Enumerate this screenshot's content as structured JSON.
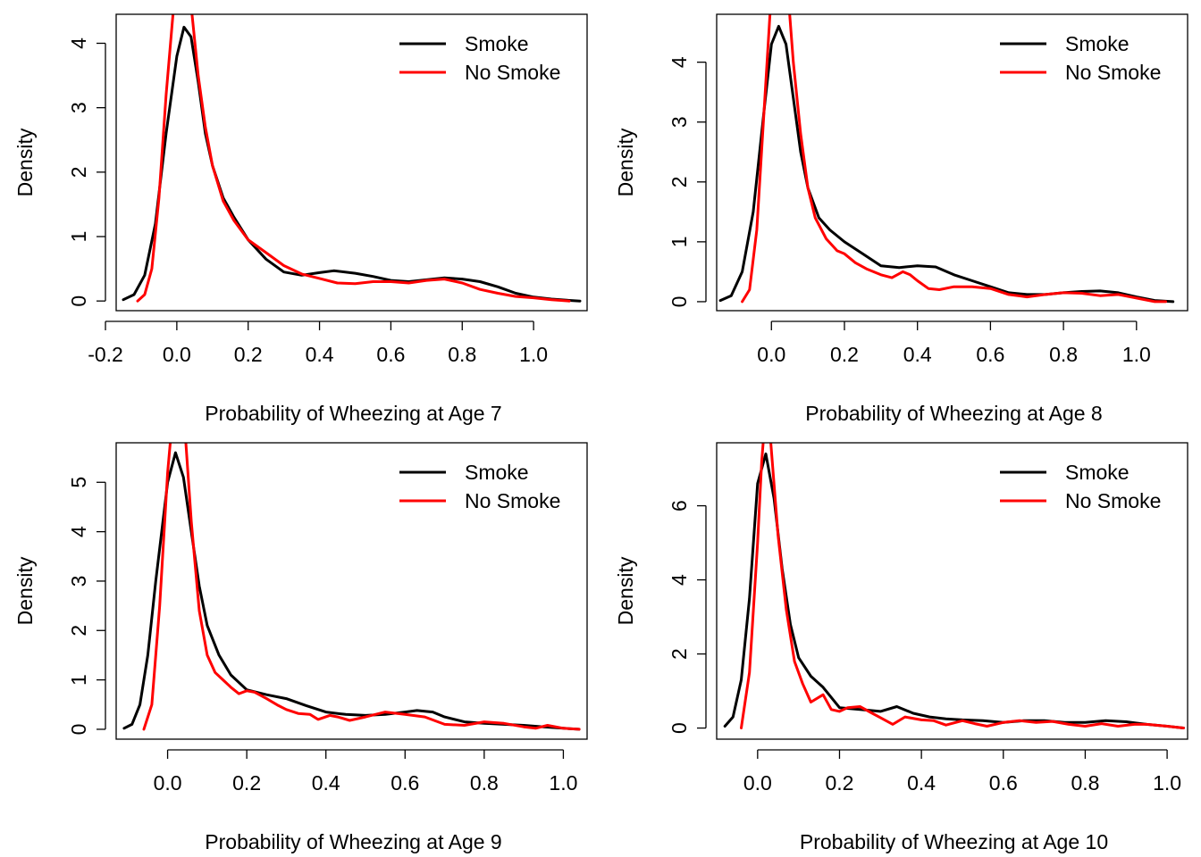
{
  "chart_data": [
    {
      "type": "line",
      "title": "",
      "xlabel": "Probability of Wheezing at Age 7",
      "ylabel": "Density",
      "xlim": [
        -0.17,
        1.15
      ],
      "ylim": [
        -0.15,
        4.45
      ],
      "xticks": [
        -0.2,
        0.0,
        0.2,
        0.4,
        0.6,
        0.8,
        1.0
      ],
      "xtick_labels": [
        "-0.2",
        "0.0",
        "0.2",
        "0.4",
        "0.6",
        "0.8",
        "1.0"
      ],
      "yticks": [
        0,
        1,
        2,
        3,
        4
      ],
      "ytick_labels": [
        "0",
        "1",
        "2",
        "3",
        "4"
      ],
      "legend": {
        "position": "top-right",
        "entries": [
          "Smoke",
          "No Smoke"
        ]
      },
      "series": [
        {
          "name": "Smoke",
          "color": "#000000",
          "x": [
            -0.15,
            -0.12,
            -0.09,
            -0.06,
            -0.03,
            0.0,
            0.02,
            0.04,
            0.06,
            0.08,
            0.1,
            0.13,
            0.16,
            0.2,
            0.25,
            0.3,
            0.35,
            0.4,
            0.44,
            0.5,
            0.55,
            0.6,
            0.65,
            0.7,
            0.75,
            0.8,
            0.85,
            0.9,
            0.95,
            1.0,
            1.05,
            1.1,
            1.13
          ],
          "y": [
            0.02,
            0.1,
            0.4,
            1.2,
            2.6,
            3.8,
            4.25,
            4.1,
            3.4,
            2.6,
            2.1,
            1.6,
            1.3,
            0.95,
            0.65,
            0.45,
            0.4,
            0.44,
            0.47,
            0.43,
            0.38,
            0.32,
            0.3,
            0.33,
            0.36,
            0.34,
            0.3,
            0.22,
            0.12,
            0.06,
            0.03,
            0.01,
            0.0
          ]
        },
        {
          "name": "No Smoke",
          "color": "#ff0000",
          "x": [
            -0.11,
            -0.09,
            -0.07,
            -0.05,
            -0.03,
            -0.01,
            0.0,
            0.02,
            0.04,
            0.06,
            0.08,
            0.1,
            0.13,
            0.16,
            0.2,
            0.25,
            0.3,
            0.35,
            0.4,
            0.45,
            0.5,
            0.55,
            0.6,
            0.65,
            0.7,
            0.75,
            0.8,
            0.85,
            0.9,
            0.95,
            1.0,
            1.05,
            1.1
          ],
          "y": [
            0.0,
            0.1,
            0.5,
            1.6,
            3.2,
            4.5,
            5.2,
            5.6,
            4.6,
            3.5,
            2.7,
            2.1,
            1.55,
            1.25,
            0.95,
            0.75,
            0.55,
            0.42,
            0.35,
            0.28,
            0.27,
            0.3,
            0.3,
            0.28,
            0.32,
            0.34,
            0.28,
            0.18,
            0.12,
            0.07,
            0.05,
            0.02,
            0.0
          ]
        }
      ]
    },
    {
      "type": "line",
      "title": "",
      "xlabel": "Probability of Wheezing at Age 8",
      "ylabel": "Density",
      "xlim": [
        -0.15,
        1.14
      ],
      "ylim": [
        -0.15,
        4.8
      ],
      "xticks": [
        0.0,
        0.2,
        0.4,
        0.6,
        0.8,
        1.0
      ],
      "xtick_labels": [
        "0.0",
        "0.2",
        "0.4",
        "0.6",
        "0.8",
        "1.0"
      ],
      "yticks": [
        0,
        1,
        2,
        3,
        4
      ],
      "ytick_labels": [
        "0",
        "1",
        "2",
        "3",
        "4"
      ],
      "legend": {
        "position": "top-right",
        "entries": [
          "Smoke",
          "No Smoke"
        ]
      },
      "series": [
        {
          "name": "Smoke",
          "color": "#000000",
          "x": [
            -0.14,
            -0.11,
            -0.08,
            -0.05,
            -0.02,
            0.0,
            0.02,
            0.04,
            0.06,
            0.08,
            0.1,
            0.13,
            0.16,
            0.2,
            0.25,
            0.3,
            0.35,
            0.4,
            0.45,
            0.5,
            0.55,
            0.6,
            0.65,
            0.7,
            0.75,
            0.8,
            0.85,
            0.9,
            0.95,
            1.0,
            1.05,
            1.1
          ],
          "y": [
            0.02,
            0.1,
            0.5,
            1.5,
            3.2,
            4.3,
            4.6,
            4.3,
            3.4,
            2.5,
            1.9,
            1.4,
            1.2,
            1.0,
            0.8,
            0.6,
            0.57,
            0.6,
            0.58,
            0.45,
            0.35,
            0.25,
            0.15,
            0.12,
            0.12,
            0.15,
            0.17,
            0.18,
            0.15,
            0.08,
            0.02,
            0.0
          ]
        },
        {
          "name": "No Smoke",
          "color": "#ff0000",
          "x": [
            -0.08,
            -0.06,
            -0.04,
            -0.02,
            0.0,
            0.02,
            0.04,
            0.06,
            0.08,
            0.1,
            0.12,
            0.15,
            0.18,
            0.2,
            0.23,
            0.26,
            0.3,
            0.33,
            0.36,
            0.38,
            0.4,
            0.43,
            0.46,
            0.5,
            0.55,
            0.6,
            0.65,
            0.7,
            0.75,
            0.8,
            0.85,
            0.9,
            0.95,
            1.0,
            1.05,
            1.08
          ],
          "y": [
            0.0,
            0.2,
            1.2,
            3.2,
            5.2,
            6.0,
            5.6,
            4.0,
            2.8,
            1.9,
            1.4,
            1.05,
            0.85,
            0.8,
            0.65,
            0.55,
            0.45,
            0.4,
            0.5,
            0.45,
            0.35,
            0.22,
            0.2,
            0.25,
            0.25,
            0.22,
            0.12,
            0.08,
            0.12,
            0.15,
            0.14,
            0.1,
            0.12,
            0.06,
            0.0,
            0.0
          ]
        }
      ]
    },
    {
      "type": "line",
      "title": "",
      "xlabel": "Probability of Wheezing at Age 9",
      "ylabel": "Density",
      "xlim": [
        -0.13,
        1.06
      ],
      "ylim": [
        -0.2,
        5.8
      ],
      "xticks": [
        0.0,
        0.2,
        0.4,
        0.6,
        0.8,
        1.0
      ],
      "xtick_labels": [
        "0.0",
        "0.2",
        "0.4",
        "0.6",
        "0.8",
        "1.0"
      ],
      "yticks": [
        0,
        1,
        2,
        3,
        4,
        5
      ],
      "ytick_labels": [
        "0",
        "1",
        "2",
        "3",
        "4",
        "5"
      ],
      "legend": {
        "position": "top-right",
        "entries": [
          "Smoke",
          "No Smoke"
        ]
      },
      "series": [
        {
          "name": "Smoke",
          "color": "#000000",
          "x": [
            -0.11,
            -0.09,
            -0.07,
            -0.05,
            -0.03,
            0.0,
            0.02,
            0.04,
            0.06,
            0.08,
            0.1,
            0.13,
            0.16,
            0.2,
            0.25,
            0.3,
            0.35,
            0.4,
            0.45,
            0.5,
            0.55,
            0.6,
            0.63,
            0.67,
            0.7,
            0.75,
            0.8,
            0.85,
            0.9,
            0.95,
            1.0,
            1.04
          ],
          "y": [
            0.02,
            0.1,
            0.5,
            1.5,
            3.0,
            5.0,
            5.6,
            5.1,
            4.0,
            2.9,
            2.1,
            1.5,
            1.1,
            0.8,
            0.7,
            0.62,
            0.48,
            0.35,
            0.3,
            0.28,
            0.3,
            0.35,
            0.38,
            0.35,
            0.25,
            0.15,
            0.12,
            0.1,
            0.08,
            0.05,
            0.02,
            0.0
          ]
        },
        {
          "name": "No Smoke",
          "color": "#ff0000",
          "x": [
            -0.06,
            -0.04,
            -0.02,
            0.0,
            0.02,
            0.04,
            0.06,
            0.08,
            0.1,
            0.12,
            0.14,
            0.16,
            0.18,
            0.2,
            0.22,
            0.25,
            0.28,
            0.3,
            0.33,
            0.36,
            0.38,
            0.41,
            0.43,
            0.46,
            0.5,
            0.55,
            0.6,
            0.65,
            0.7,
            0.75,
            0.8,
            0.85,
            0.9,
            0.93,
            0.96,
            1.0,
            1.04
          ],
          "y": [
            0.0,
            0.5,
            2.5,
            5.2,
            7.0,
            6.5,
            4.2,
            2.4,
            1.5,
            1.15,
            1.0,
            0.85,
            0.72,
            0.78,
            0.75,
            0.62,
            0.48,
            0.4,
            0.32,
            0.3,
            0.2,
            0.28,
            0.25,
            0.18,
            0.25,
            0.35,
            0.3,
            0.25,
            0.1,
            0.08,
            0.15,
            0.12,
            0.05,
            0.02,
            0.08,
            0.02,
            0.0
          ]
        }
      ]
    },
    {
      "type": "line",
      "title": "",
      "xlabel": "Probability of Wheezing at Age 10",
      "ylabel": "Density",
      "xlim": [
        -0.1,
        1.05
      ],
      "ylim": [
        -0.3,
        7.7
      ],
      "xticks": [
        0.0,
        0.2,
        0.4,
        0.6,
        0.8,
        1.0
      ],
      "xtick_labels": [
        "0.0",
        "0.2",
        "0.4",
        "0.6",
        "0.8",
        "1.0"
      ],
      "yticks": [
        0,
        2,
        4,
        6
      ],
      "ytick_labels": [
        "0",
        "2",
        "4",
        "6"
      ],
      "legend": {
        "position": "top-right",
        "entries": [
          "Smoke",
          "No Smoke"
        ]
      },
      "series": [
        {
          "name": "Smoke",
          "color": "#000000",
          "x": [
            -0.08,
            -0.06,
            -0.04,
            -0.02,
            0.0,
            0.02,
            0.04,
            0.06,
            0.08,
            0.1,
            0.13,
            0.16,
            0.2,
            0.25,
            0.3,
            0.34,
            0.38,
            0.42,
            0.46,
            0.5,
            0.55,
            0.6,
            0.65,
            0.7,
            0.75,
            0.8,
            0.85,
            0.9,
            0.95,
            1.0,
            1.04
          ],
          "y": [
            0.05,
            0.3,
            1.3,
            3.5,
            6.6,
            7.4,
            6.2,
            4.3,
            2.8,
            1.9,
            1.4,
            1.1,
            0.55,
            0.5,
            0.45,
            0.58,
            0.4,
            0.3,
            0.25,
            0.22,
            0.2,
            0.15,
            0.2,
            0.2,
            0.15,
            0.15,
            0.2,
            0.17,
            0.1,
            0.05,
            0.0
          ]
        },
        {
          "name": "No Smoke",
          "color": "#ff0000",
          "x": [
            -0.04,
            -0.02,
            0.0,
            0.01,
            0.02,
            0.03,
            0.05,
            0.07,
            0.09,
            0.11,
            0.13,
            0.16,
            0.18,
            0.2,
            0.22,
            0.25,
            0.28,
            0.3,
            0.33,
            0.36,
            0.4,
            0.43,
            0.46,
            0.5,
            0.53,
            0.56,
            0.6,
            0.64,
            0.68,
            0.72,
            0.76,
            0.8,
            0.84,
            0.88,
            0.92,
            0.95,
            1.0,
            1.04
          ],
          "y": [
            0.0,
            1.5,
            5.0,
            7.2,
            8.6,
            8.0,
            5.2,
            3.2,
            1.8,
            1.2,
            0.7,
            0.9,
            0.5,
            0.45,
            0.55,
            0.58,
            0.4,
            0.28,
            0.1,
            0.3,
            0.22,
            0.2,
            0.08,
            0.2,
            0.12,
            0.05,
            0.15,
            0.2,
            0.15,
            0.18,
            0.1,
            0.05,
            0.12,
            0.05,
            0.1,
            0.1,
            0.05,
            0.0
          ]
        }
      ]
    }
  ]
}
